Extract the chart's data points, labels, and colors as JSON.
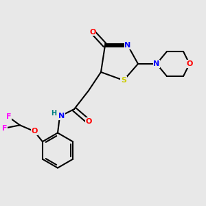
{
  "bg_color": "#e8e8e8",
  "figsize": [
    3.0,
    3.0
  ],
  "dpi": 100,
  "bond_color": "#000000",
  "bond_lw": 1.5,
  "colors": {
    "C": "#000000",
    "N": "#0000ff",
    "O": "#ff0000",
    "S": "#cccc00",
    "F": "#ff00ff",
    "H": "#008080"
  },
  "font_size": 7.5
}
